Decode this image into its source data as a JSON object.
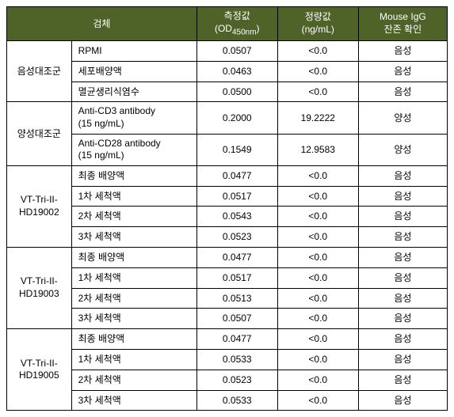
{
  "header": {
    "sample": "검체",
    "od_line1": "측정값",
    "od_line2": "(OD",
    "od_sub": "450nm",
    "od_line2_close": ")",
    "quant_line1": "정량값",
    "quant_line2": "(ng/mL)",
    "result_line1": "Mouse IgG",
    "result_line2": "잔존 확인"
  },
  "groups": [
    {
      "name": "음성대조군",
      "rows": [
        {
          "sample": "RPMI",
          "od": "0.0507",
          "quant": "<0.0",
          "res": "음성"
        },
        {
          "sample": "세포배양액",
          "od": "0.0463",
          "quant": "<0.0",
          "res": "음성"
        },
        {
          "sample": "멸균생리식염수",
          "od": "0.0500",
          "quant": "<0.0",
          "res": "음성"
        }
      ]
    },
    {
      "name": "양성대조군",
      "rows": [
        {
          "sample_line1": "Anti-CD3 antibody",
          "sample_line2": "(15 ng/mL)",
          "od": "0.2000",
          "quant": "19.2222",
          "res": "양성"
        },
        {
          "sample_line1": "Anti-CD28 antibody",
          "sample_line2": "(15 ng/mL)",
          "od": "0.1549",
          "quant": "12.9583",
          "res": "양성"
        }
      ]
    },
    {
      "name_line1": "VT-Tri-II-",
      "name_line2": "HD19002",
      "rows": [
        {
          "sample": "최종 배양액",
          "od": "0.0477",
          "quant": "<0.0",
          "res": "음성"
        },
        {
          "sample": "1차 세척액",
          "od": "0.0517",
          "quant": "<0.0",
          "res": "음성"
        },
        {
          "sample": "2차 세척액",
          "od": "0.0543",
          "quant": "<0.0",
          "res": "음성"
        },
        {
          "sample": "3차 세척액",
          "od": "0.0523",
          "quant": "<0.0",
          "res": "음성"
        }
      ]
    },
    {
      "name_line1": "VT-Tri-II-",
      "name_line2": "HD19003",
      "rows": [
        {
          "sample": "최종 배양액",
          "od": "0.0477",
          "quant": "<0.0",
          "res": "음성"
        },
        {
          "sample": "1차 세척액",
          "od": "0.0517",
          "quant": "<0.0",
          "res": "음성"
        },
        {
          "sample": "2차 세척액",
          "od": "0.0513",
          "quant": "<0.0",
          "res": "음성"
        },
        {
          "sample": "3차 세척액",
          "od": "0.0507",
          "quant": "<0.0",
          "res": "음성"
        }
      ]
    },
    {
      "name_line1": "VT-Tri-II-",
      "name_line2": "HD19005",
      "rows": [
        {
          "sample": "최종 배양액",
          "od": "0.0477",
          "quant": "<0.0",
          "res": "음성"
        },
        {
          "sample": "1차 세척액",
          "od": "0.0533",
          "quant": "<0.0",
          "res": "음성"
        },
        {
          "sample": "2차 세척액",
          "od": "0.0523",
          "quant": "<0.0",
          "res": "음성"
        },
        {
          "sample": "3차 세척액",
          "od": "0.0533",
          "quant": "<0.0",
          "res": "음성"
        }
      ]
    }
  ]
}
